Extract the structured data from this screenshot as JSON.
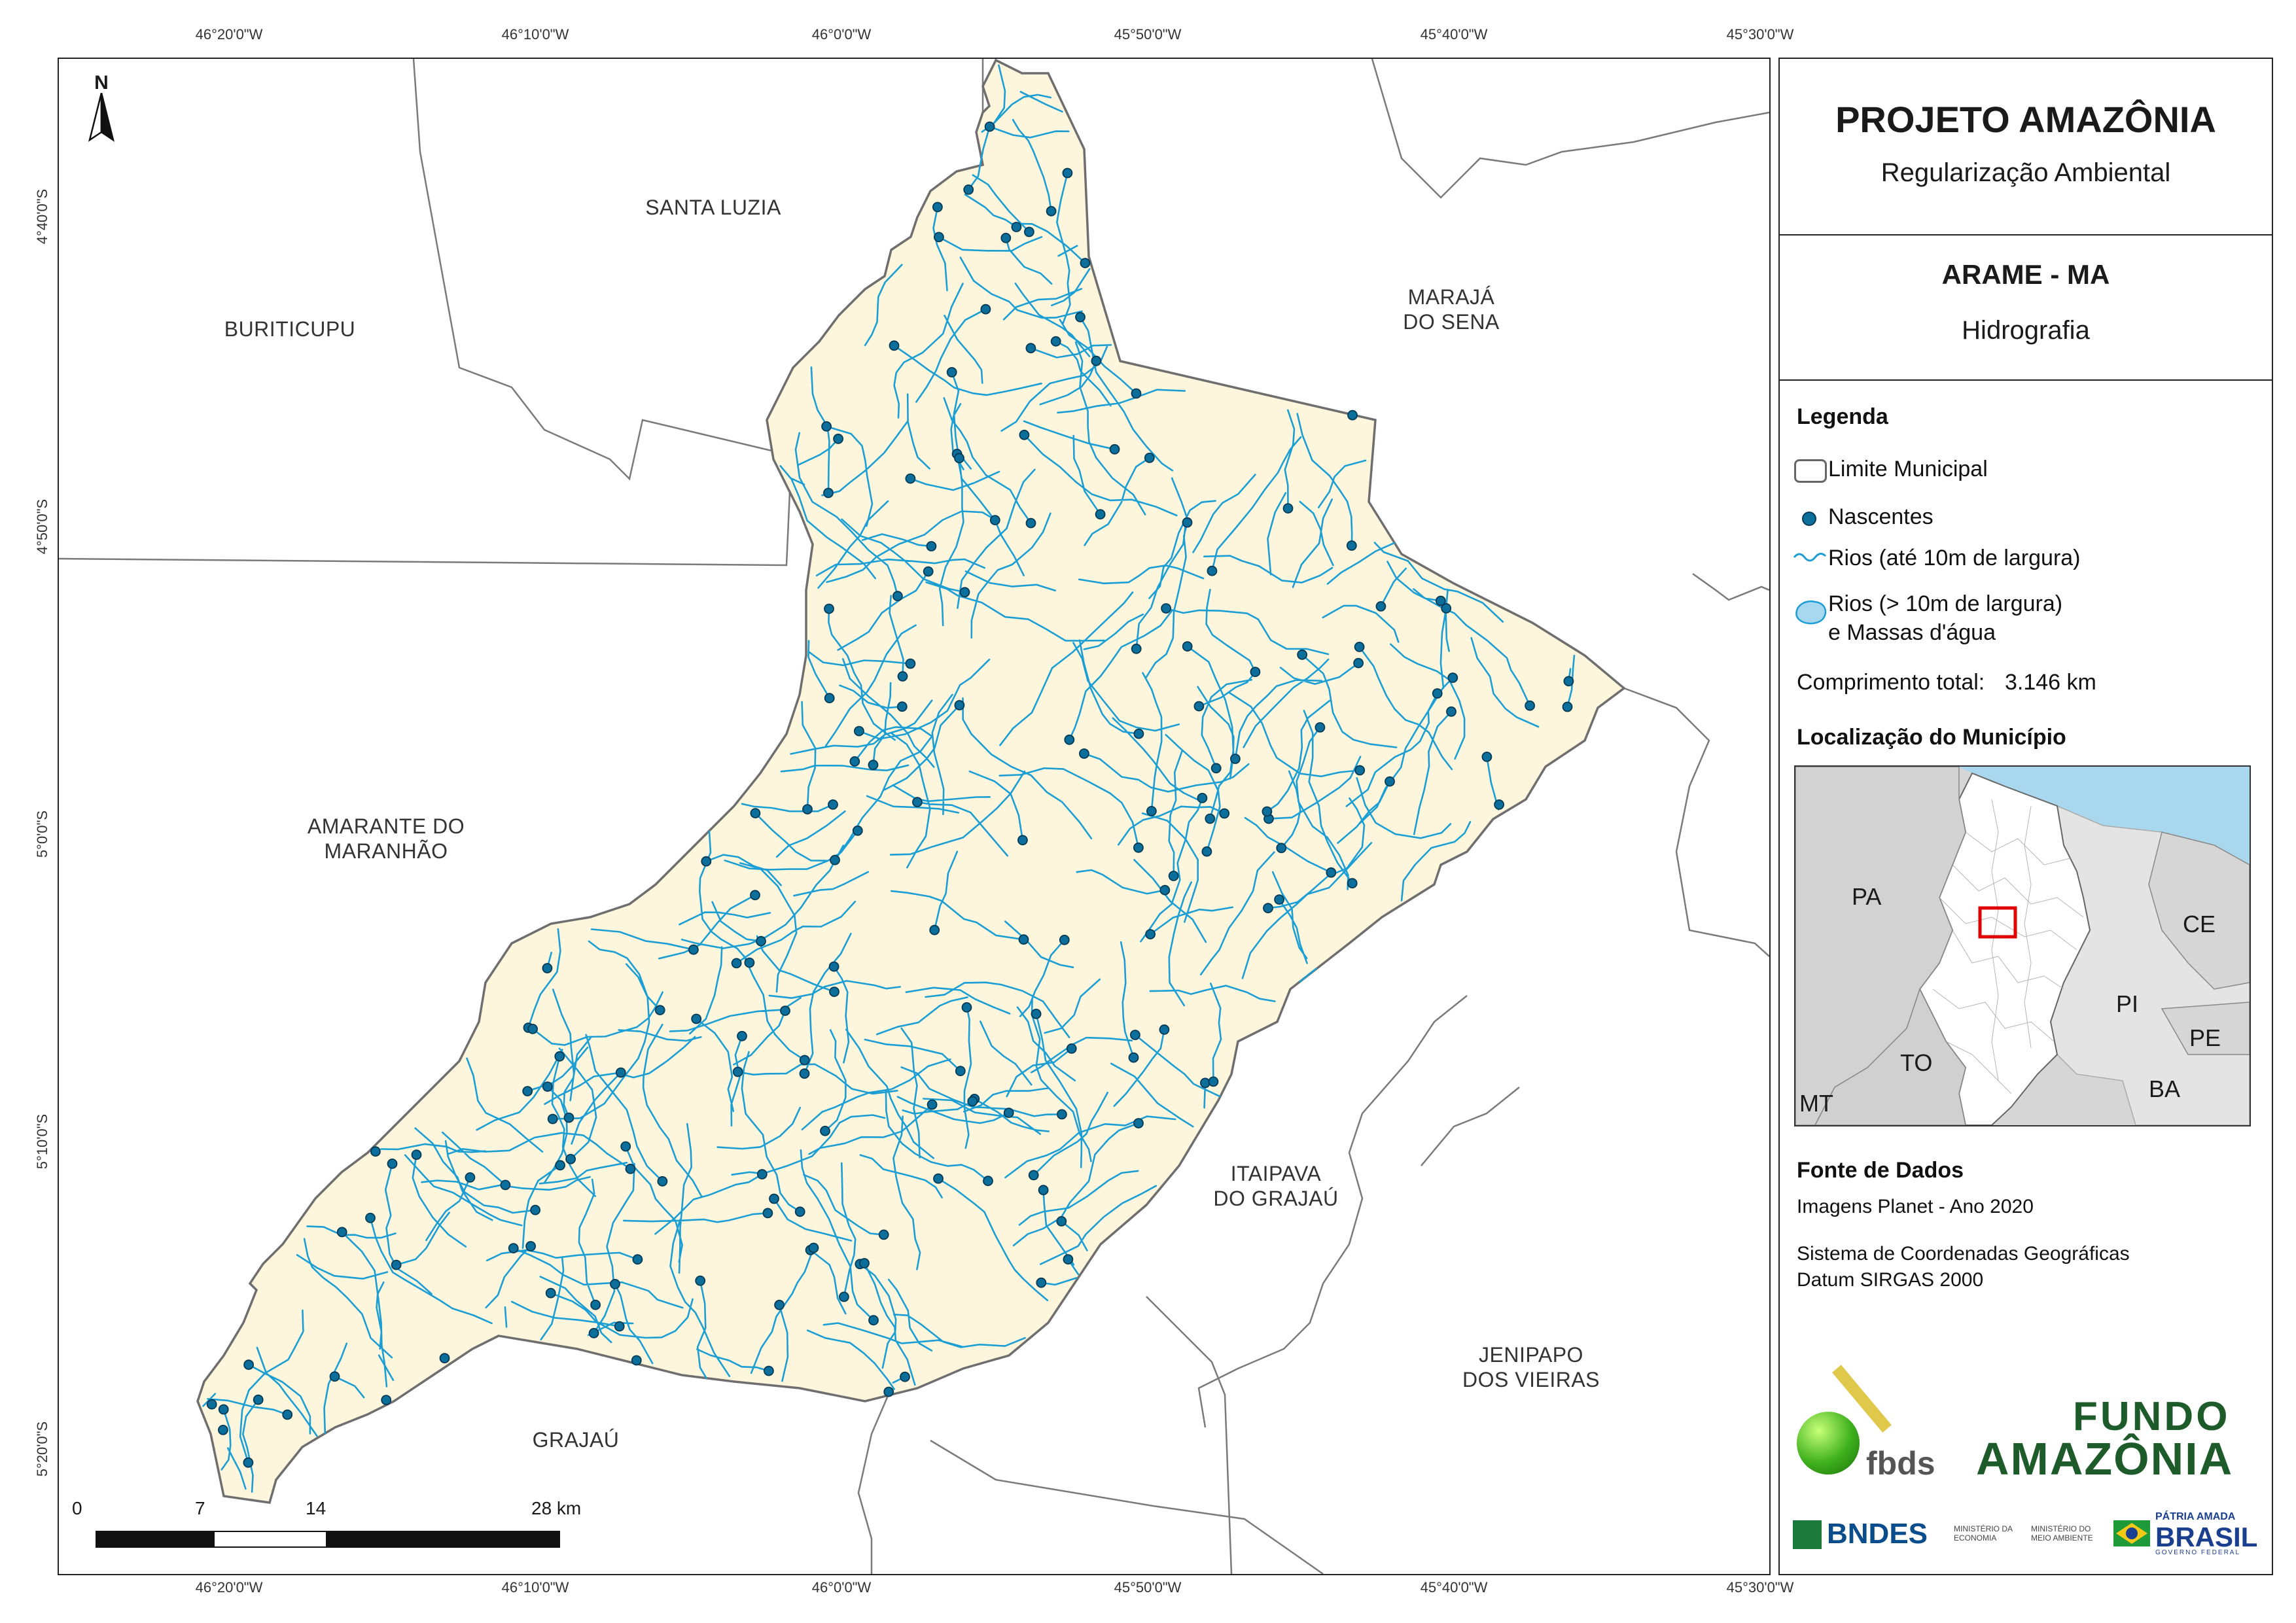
{
  "title": "PROJETO AMAZÔNIA",
  "subtitle": "Regularização Ambiental",
  "municipality": "ARAME - MA",
  "theme": "Hidrografia",
  "legend": {
    "heading": "Legenda",
    "items": [
      {
        "label": "Limite Municipal",
        "icon": "boundary-icon"
      },
      {
        "label": "Nascentes",
        "icon": "spring-dot-icon"
      },
      {
        "label": "Rios (até 10m de largura)",
        "icon": "river-line-icon"
      },
      {
        "label": "Rios (> 10m de largura)",
        "label2": "e Massas d'água",
        "icon": "water-body-icon"
      }
    ],
    "total_length_label": "Comprimento total:",
    "total_length_value": "3.146 km"
  },
  "locator": {
    "heading": "Localização do Município",
    "states": [
      "PA",
      "CE",
      "PI",
      "TO",
      "PE",
      "BA",
      "MT"
    ]
  },
  "sources": {
    "heading": "Fonte de Dados",
    "line1": "Imagens Planet - Ano 2020",
    "line2": "Sistema de Coordenadas Geográficas",
    "line3": "Datum SIRGAS 2000"
  },
  "logos": {
    "fbds": "fbds",
    "fundo_1": "FUNDO",
    "fundo_2": "AMAZÔNIA",
    "bndes": "BNDES",
    "min_economia_1": "MINISTÉRIO DA",
    "min_economia_2": "ECONOMIA",
    "min_ambiente_1": "MINISTÉRIO DO",
    "min_ambiente_2": "MEIO AMBIENTE",
    "patria_1": "PÁTRIA AMADA",
    "patria_2": "BRASIL",
    "patria_3": "GOVERNO FEDERAL"
  },
  "graticule": {
    "longitudes": [
      "46°20'0\"W",
      "46°10'0\"W",
      "46°0'0\"W",
      "45°50'0\"W",
      "45°40'0\"W",
      "45°30'0\"W"
    ],
    "latitudes": [
      "4°40'0\"S",
      "4°50'0\"S",
      "5°0'0\"S",
      "5°10'0\"S",
      "5°20'0\"S"
    ]
  },
  "neighbors": {
    "santa_luzia": "SANTA LUZIA",
    "buriticupu": "BURITICUPU",
    "maraja": "MARAJÁ\nDO SENA",
    "amarante": "AMARANTE DO\nMARANHÃO",
    "itaipava": "ITAIPAVA\nDO GRAJAÚ",
    "jenipapo": "JENIPAPO\nDOS VIEIRAS",
    "grajau": "GRAJAÚ"
  },
  "scalebar": {
    "ticks": [
      "0",
      "7",
      "14",
      "28 km"
    ]
  },
  "north_label": "N",
  "colors": {
    "municipality_fill": "#fdf6dc",
    "river": "#1a9ed4",
    "spring": "#0b6e9b",
    "boundary": "#777777",
    "water": "#a8d8ef"
  }
}
